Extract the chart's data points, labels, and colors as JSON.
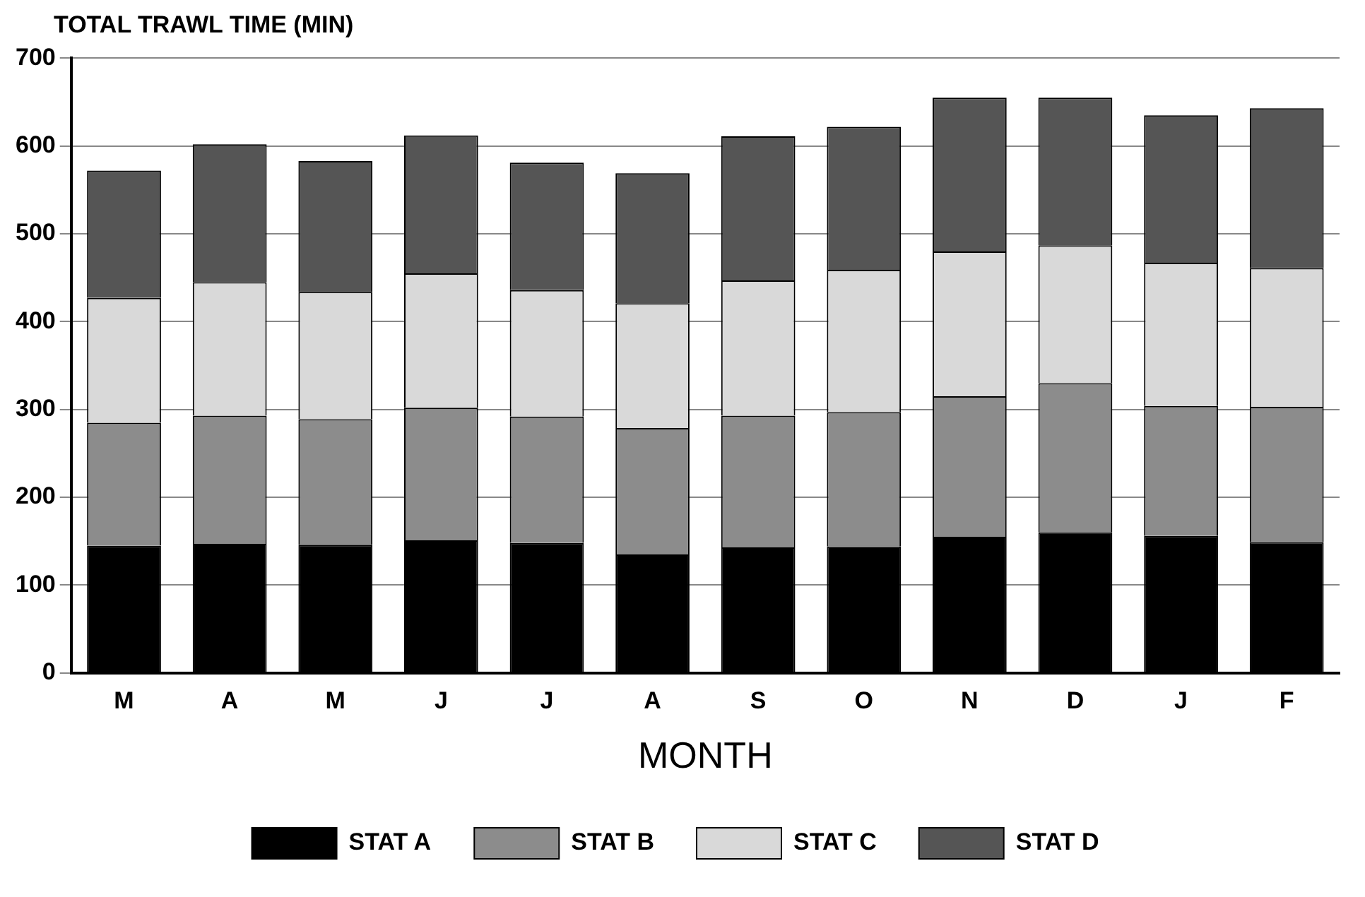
{
  "chart_data": {
    "type": "bar",
    "stacked": true,
    "ylabel": "TOTAL TRAWL TIME (MIN)",
    "xlabel": "MONTH",
    "categories": [
      "M",
      "A",
      "M",
      "J",
      "J",
      "A",
      "S",
      "O",
      "N",
      "D",
      "J",
      "F"
    ],
    "series": [
      {
        "name": "STAT A",
        "color": "#000000",
        "values": [
          145,
          147,
          146,
          151,
          148,
          135,
          143,
          144,
          155,
          160,
          156,
          149
        ]
      },
      {
        "name": "STAT B",
        "color": "#8c8c8c",
        "values": [
          140,
          146,
          143,
          151,
          144,
          144,
          150,
          153,
          160,
          170,
          148,
          154
        ]
      },
      {
        "name": "STAT C",
        "color": "#d9d9d9",
        "values": [
          142,
          152,
          145,
          153,
          144,
          142,
          154,
          162,
          165,
          157,
          163,
          158
        ]
      },
      {
        "name": "STAT D",
        "color": "#555555",
        "values": [
          145,
          157,
          149,
          157,
          145,
          148,
          164,
          163,
          175,
          168,
          168,
          182
        ]
      }
    ],
    "ylim": [
      0,
      700
    ],
    "yticks": [
      0,
      100,
      200,
      300,
      400,
      500,
      600,
      700
    ],
    "grid": "y",
    "legend": "bottom"
  }
}
